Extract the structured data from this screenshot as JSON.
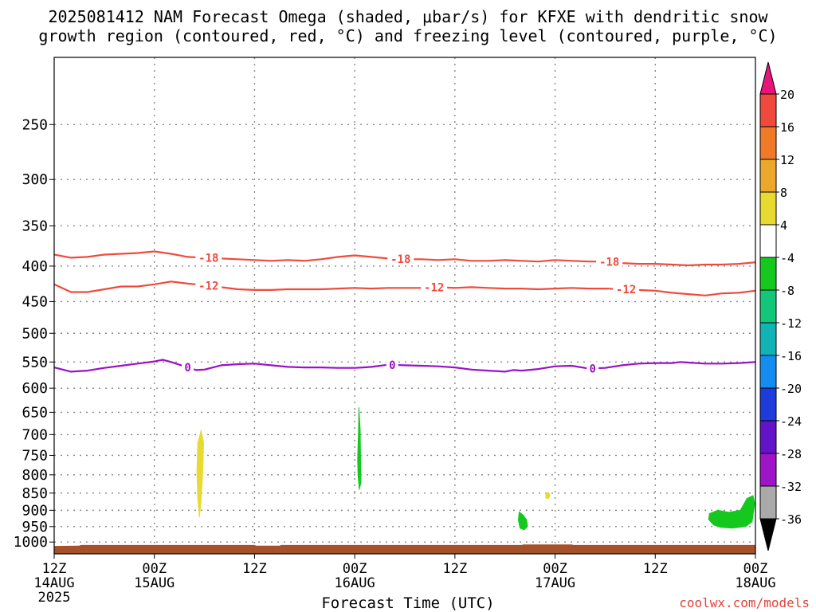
{
  "title_line1": "2025081412 NAM Forecast Omega (shaded, μbar/s) for KFXE with dendritic snow",
  "title_line2": "growth region (contoured, red, °C) and freezing level (contoured, purple, °C)",
  "credit": "coolwx.com/models",
  "chart_data": {
    "type": "heatmap",
    "xlabel": "Forecast Time (UTC)",
    "ylabel": "",
    "x_range_hours": [
      0,
      84
    ],
    "ylim_mb": [
      1040,
      200
    ],
    "y_ticks": [
      250,
      300,
      350,
      400,
      450,
      500,
      550,
      600,
      650,
      700,
      750,
      800,
      850,
      900,
      950,
      1000
    ],
    "x_ticks": [
      {
        "hour": 0,
        "label": "12Z",
        "sub1": "14AUG",
        "sub2": "2025"
      },
      {
        "hour": 12,
        "label": "00Z",
        "sub1": "15AUG",
        "sub2": ""
      },
      {
        "hour": 24,
        "label": "12Z",
        "sub1": "",
        "sub2": ""
      },
      {
        "hour": 36,
        "label": "00Z",
        "sub1": "16AUG",
        "sub2": ""
      },
      {
        "hour": 48,
        "label": "12Z",
        "sub1": "",
        "sub2": ""
      },
      {
        "hour": 60,
        "label": "00Z",
        "sub1": "17AUG",
        "sub2": ""
      },
      {
        "hour": 72,
        "label": "12Z",
        "sub1": "",
        "sub2": ""
      },
      {
        "hour": 84,
        "label": "00Z",
        "sub1": "18AUG",
        "sub2": ""
      }
    ],
    "grid": true,
    "colorbar": {
      "labels": [
        "20",
        "16",
        "12",
        "8",
        "4",
        "-4",
        "-8",
        "-12",
        "-16",
        "-20",
        "-24",
        "-28",
        "-32",
        "-36"
      ],
      "colors": [
        "#e8147a",
        "#f04a3c",
        "#f07a28",
        "#eba82c",
        "#e8da30",
        "#ffffff",
        "#14c81e",
        "#12c878",
        "#10b4b4",
        "#148cf0",
        "#1e3cdc",
        "#6414c8",
        "#a014c8",
        "#aaaaaa",
        "#000000"
      ]
    },
    "contours": [
      {
        "name": "-18",
        "color": "#f04a3c",
        "label_hours": [
          18.5,
          41.5,
          66.5
        ],
        "points": [
          [
            0,
            385
          ],
          [
            2,
            389
          ],
          [
            4,
            388
          ],
          [
            6,
            385
          ],
          [
            8,
            384
          ],
          [
            10,
            383
          ],
          [
            12,
            381
          ],
          [
            14,
            384
          ],
          [
            16,
            388
          ],
          [
            18,
            389
          ],
          [
            20,
            390
          ],
          [
            22,
            391
          ],
          [
            24,
            392
          ],
          [
            26,
            393
          ],
          [
            28,
            392
          ],
          [
            30,
            393
          ],
          [
            32,
            391
          ],
          [
            34,
            388
          ],
          [
            36,
            386
          ],
          [
            38,
            388
          ],
          [
            40,
            390
          ],
          [
            42,
            391
          ],
          [
            44,
            391
          ],
          [
            46,
            392
          ],
          [
            48,
            391
          ],
          [
            50,
            393
          ],
          [
            52,
            393
          ],
          [
            54,
            392
          ],
          [
            56,
            393
          ],
          [
            58,
            394
          ],
          [
            60,
            392
          ],
          [
            62,
            393
          ],
          [
            64,
            394
          ],
          [
            66,
            394
          ],
          [
            68,
            396
          ],
          [
            70,
            397
          ],
          [
            72,
            397
          ],
          [
            74,
            398
          ],
          [
            76,
            399
          ],
          [
            78,
            398
          ],
          [
            80,
            398
          ],
          [
            82,
            397
          ],
          [
            84,
            395
          ]
        ]
      },
      {
        "name": "-12",
        "color": "#f04a3c",
        "label_hours": [
          18.5,
          45.5,
          68.5
        ],
        "points": [
          [
            0,
            425
          ],
          [
            2,
            436
          ],
          [
            4,
            436
          ],
          [
            6,
            432
          ],
          [
            8,
            428
          ],
          [
            10,
            428
          ],
          [
            12,
            425
          ],
          [
            14,
            421
          ],
          [
            16,
            424
          ],
          [
            18,
            426
          ],
          [
            20,
            429
          ],
          [
            22,
            432
          ],
          [
            24,
            433
          ],
          [
            26,
            433
          ],
          [
            28,
            432
          ],
          [
            30,
            432
          ],
          [
            32,
            432
          ],
          [
            34,
            431
          ],
          [
            36,
            430
          ],
          [
            38,
            431
          ],
          [
            40,
            430
          ],
          [
            42,
            430
          ],
          [
            44,
            430
          ],
          [
            46,
            429
          ],
          [
            48,
            430
          ],
          [
            50,
            429
          ],
          [
            52,
            430
          ],
          [
            54,
            431
          ],
          [
            56,
            431
          ],
          [
            58,
            432
          ],
          [
            60,
            431
          ],
          [
            62,
            430
          ],
          [
            64,
            431
          ],
          [
            66,
            431
          ],
          [
            68,
            432
          ],
          [
            70,
            433
          ],
          [
            72,
            434
          ],
          [
            74,
            437
          ],
          [
            76,
            439
          ],
          [
            78,
            441
          ],
          [
            80,
            438
          ],
          [
            82,
            437
          ],
          [
            84,
            434
          ]
        ]
      },
      {
        "name": "0",
        "color": "#9b10c8",
        "label_hours": [
          16,
          40.5,
          64.5
        ],
        "points": [
          [
            0,
            560
          ],
          [
            2,
            568
          ],
          [
            4,
            566
          ],
          [
            6,
            561
          ],
          [
            8,
            557
          ],
          [
            10,
            553
          ],
          [
            12,
            549
          ],
          [
            13,
            546
          ],
          [
            14,
            550
          ],
          [
            16,
            560
          ],
          [
            17,
            565
          ],
          [
            18,
            564
          ],
          [
            20,
            556
          ],
          [
            22,
            554
          ],
          [
            24,
            553
          ],
          [
            26,
            556
          ],
          [
            28,
            559
          ],
          [
            30,
            560
          ],
          [
            32,
            560
          ],
          [
            34,
            561
          ],
          [
            36,
            561
          ],
          [
            37,
            560
          ],
          [
            38,
            559
          ],
          [
            40,
            555
          ],
          [
            42,
            556
          ],
          [
            44,
            557
          ],
          [
            46,
            558
          ],
          [
            48,
            560
          ],
          [
            50,
            564
          ],
          [
            52,
            566
          ],
          [
            54,
            568
          ],
          [
            55,
            565
          ],
          [
            56,
            566
          ],
          [
            58,
            563
          ],
          [
            60,
            558
          ],
          [
            62,
            557
          ],
          [
            64,
            562
          ],
          [
            66,
            561
          ],
          [
            68,
            556
          ],
          [
            70,
            553
          ],
          [
            72,
            552
          ],
          [
            74,
            552
          ],
          [
            75,
            550
          ],
          [
            76,
            551
          ],
          [
            78,
            553
          ],
          [
            80,
            553
          ],
          [
            82,
            552
          ],
          [
            84,
            550
          ]
        ]
      }
    ],
    "omega_regions": [
      {
        "name": "4",
        "color": "#e8da30",
        "pts": [
          [
            17.6,
            690
          ],
          [
            17.9,
            720
          ],
          [
            17.8,
            790
          ],
          [
            17.6,
            870
          ],
          [
            17.4,
            920
          ],
          [
            17.2,
            870
          ],
          [
            17.1,
            790
          ],
          [
            17.2,
            720
          ]
        ]
      },
      {
        "name": "-4",
        "color": "#14c81e",
        "pts": [
          [
            36.5,
            640
          ],
          [
            36.65,
            690
          ],
          [
            36.7,
            760
          ],
          [
            36.75,
            820
          ],
          [
            36.55,
            840
          ],
          [
            36.4,
            800
          ],
          [
            36.35,
            760
          ],
          [
            36.45,
            690
          ]
        ]
      },
      {
        "name": "4",
        "color": "#e8da30",
        "pts": [
          [
            58.9,
            850
          ],
          [
            59.2,
            848
          ],
          [
            59.4,
            856
          ],
          [
            59.2,
            866
          ],
          [
            58.9,
            864
          ]
        ]
      },
      {
        "name": "-4",
        "color": "#14c81e",
        "pts": [
          [
            55.7,
            905
          ],
          [
            56.2,
            915
          ],
          [
            56.6,
            930
          ],
          [
            56.7,
            950
          ],
          [
            56.3,
            960
          ],
          [
            55.8,
            955
          ],
          [
            55.6,
            930
          ]
        ]
      },
      {
        "name": "-4",
        "color": "#14c81e",
        "pts": [
          [
            78.5,
            910
          ],
          [
            79.5,
            900
          ],
          [
            80.8,
            906
          ],
          [
            82.2,
            900
          ],
          [
            83.0,
            865
          ],
          [
            83.7,
            857
          ],
          [
            83.9,
            880
          ],
          [
            83.6,
            935
          ],
          [
            82.8,
            950
          ],
          [
            81.2,
            955
          ],
          [
            79.8,
            952
          ],
          [
            79.0,
            945
          ],
          [
            78.4,
            928
          ]
        ]
      }
    ],
    "surface": {
      "color": "#a5522a",
      "pts": [
        [
          0,
          1013
        ],
        [
          3,
          1012
        ],
        [
          3.2,
          1010
        ],
        [
          24,
          1010
        ],
        [
          24.2,
          1012
        ],
        [
          27,
          1012
        ],
        [
          27.2,
          1010
        ],
        [
          56,
          1010
        ],
        [
          56.2,
          1008
        ],
        [
          62,
          1008
        ],
        [
          62.2,
          1010
        ],
        [
          84,
          1010
        ]
      ]
    }
  }
}
